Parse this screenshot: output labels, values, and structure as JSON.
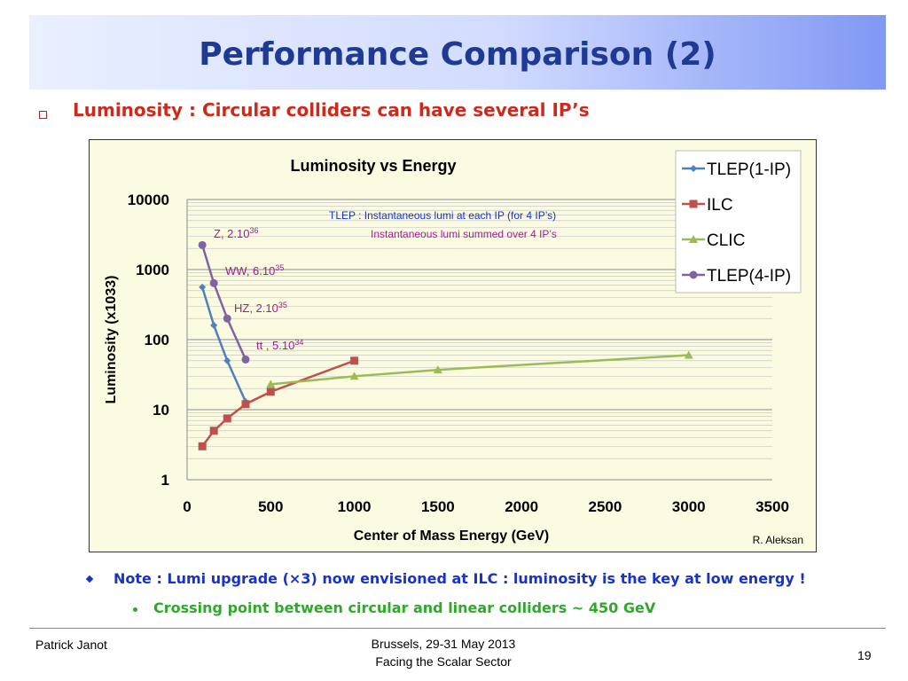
{
  "slide": {
    "title": "Performance Comparison (2)",
    "bullet": "Luminosity : Circular colliders can have several IP’s",
    "credit": "R. Aleksan",
    "note": "Note : Lumi upgrade (×3) now envisioned at ILC : luminosity is the key at low energy !",
    "subnote": "Crossing point between circular and linear colliders ~ 450 GeV",
    "footer_left": "Patrick Janot",
    "footer_center_1": "Brussels, 29-31 May 2013",
    "footer_center_2": "Facing the Scalar Sector",
    "page_number": "19"
  },
  "chart_data": {
    "type": "line",
    "title": "Luminosity vs Energy",
    "xlabel": "Center of Mass Energy (GeV)",
    "ylabel": "Luminosity (x1033)",
    "x_ticks": [
      "0",
      "500",
      "1000",
      "1500",
      "2000",
      "2500",
      "3000",
      "3500"
    ],
    "y_ticks": [
      "1",
      "10",
      "100",
      "1000",
      "10000"
    ],
    "xlim": [
      0,
      3500
    ],
    "ylim": [
      1,
      10000
    ],
    "yscale": "log",
    "grid": true,
    "legend_position": "top-right",
    "series": [
      {
        "name": "TLEP(1-IP)",
        "color": "#4f81bd",
        "marker": "diamond",
        "x": [
          91,
          160,
          240,
          350
        ],
        "y": [
          560,
          160,
          50,
          13
        ]
      },
      {
        "name": "ILC",
        "color": "#c0504d",
        "marker": "square",
        "x": [
          91,
          160,
          240,
          350,
          500,
          1000
        ],
        "y": [
          3,
          5,
          7.5,
          12,
          18,
          50
        ]
      },
      {
        "name": "CLIC",
        "color": "#9bbb59",
        "marker": "triangle",
        "x": [
          500,
          1000,
          1500,
          3000
        ],
        "y": [
          23,
          30,
          37,
          60
        ]
      },
      {
        "name": "TLEP(4-IP)",
        "color": "#8064a2",
        "marker": "circle",
        "x": [
          91,
          160,
          240,
          350
        ],
        "y": [
          2240,
          640,
          200,
          52
        ]
      }
    ],
    "annotations": [
      {
        "text": "TLEP : Instantaneous lumi at each IP (for 4 IP’s)",
        "color": "#1833c8"
      },
      {
        "text": "Instantaneous lumi summed over 4 IP’s",
        "color": "#a0208f"
      }
    ],
    "point_labels": [
      {
        "base": "Z, 2.10",
        "exp": "36"
      },
      {
        "base": "WW, 6.10",
        "exp": "35"
      },
      {
        "base": "HZ, 2.10",
        "exp": "35"
      },
      {
        "base": "tt , 5.10",
        "exp": "34"
      }
    ]
  }
}
